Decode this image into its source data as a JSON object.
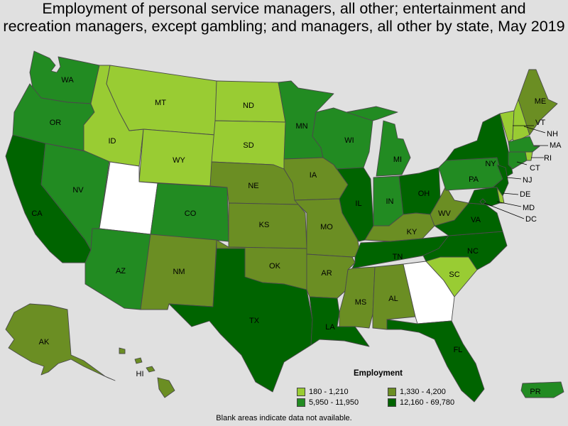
{
  "title_line1": "Employment of personal service managers, all other; entertainment and",
  "title_line2": "recreation managers, except gambling; and managers, all other by state, May 2019",
  "legend": {
    "title": "Employment",
    "classes": [
      {
        "key": "c1",
        "label": "180 - 1,210",
        "color": "#99cc33"
      },
      {
        "key": "c2",
        "label": "1,330 - 4,200",
        "color": "#6b8e23"
      },
      {
        "key": "c3",
        "label": "5,950 - 11,950",
        "color": "#228b22"
      },
      {
        "key": "c4",
        "label": "12,160 - 69,780",
        "color": "#006400"
      }
    ],
    "no_data_color": "#ffffff"
  },
  "footnote": "Blank areas indicate data not available.",
  "states": {
    "WA": "c3",
    "OR": "c3",
    "CA": "c4",
    "NV": "c3",
    "ID": "c1",
    "MT": "c1",
    "WY": "c1",
    "UT": "none",
    "AZ": "c3",
    "CO": "c3",
    "NM": "c2",
    "ND": "c1",
    "SD": "c1",
    "NE": "c2",
    "KS": "c2",
    "OK": "c2",
    "TX": "c4",
    "MN": "c3",
    "IA": "c2",
    "MO": "c2",
    "AR": "c2",
    "LA": "c4",
    "WI": "c3",
    "IL": "c4",
    "MI": "c3",
    "IN": "c3",
    "OH": "c4",
    "KY": "c2",
    "TN": "c4",
    "MS": "c2",
    "AL": "c2",
    "GA": "none",
    "FL": "c4",
    "SC": "c1",
    "NC": "c4",
    "VA": "c4",
    "WV": "c2",
    "PA": "c3",
    "NY": "c4",
    "VT": "c1",
    "NH": "c1",
    "ME": "c2",
    "MA": "c3",
    "RI": "c1",
    "CT": "c3",
    "NJ": "c4",
    "DE": "c1",
    "MD": "c4",
    "DC": "c4",
    "AK": "c2",
    "HI": "c2",
    "PR": "c3"
  }
}
